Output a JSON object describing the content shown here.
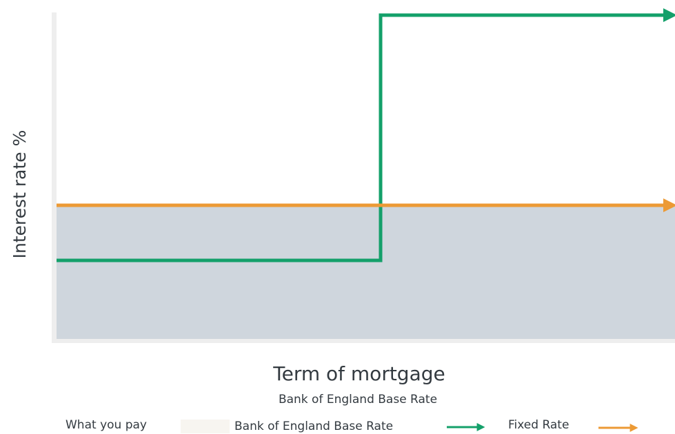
{
  "axis": {
    "y_label": "Interest rate %",
    "x_label": "Term of mortgage",
    "subtitle": "Bank of England Base Rate"
  },
  "legend": {
    "items": [
      {
        "label": "What you pay"
      },
      {
        "label": "Bank of England Base Rate"
      },
      {
        "label": "Fixed Rate"
      }
    ]
  }
}
